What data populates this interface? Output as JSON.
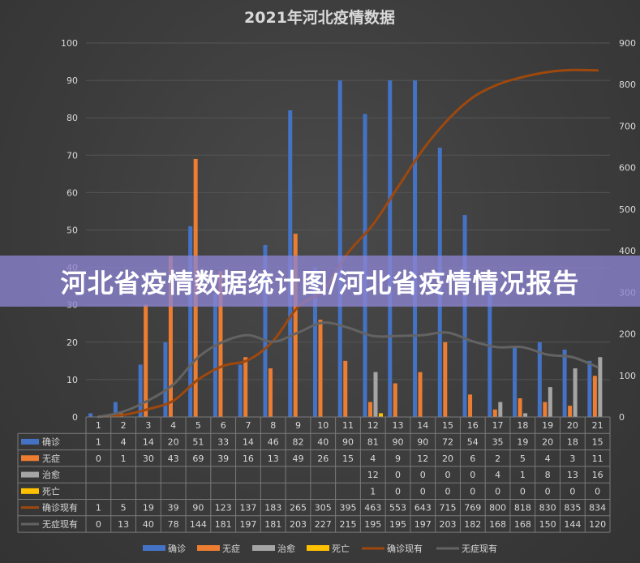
{
  "chart_data": {
    "type": "bar",
    "title": "2021年河北疫情数据",
    "categories": [
      "1",
      "2",
      "3",
      "4",
      "5",
      "6",
      "7",
      "8",
      "9",
      "10",
      "11",
      "12",
      "13",
      "14",
      "15",
      "16",
      "17",
      "18",
      "19",
      "20",
      "21"
    ],
    "y_left": {
      "min": 0,
      "max": 100,
      "ticks": [
        0,
        10,
        20,
        30,
        40,
        50,
        60,
        70,
        80,
        90,
        100
      ]
    },
    "y_right": {
      "min": 0,
      "max": 900,
      "ticks": [
        0,
        100,
        200,
        300,
        400,
        500,
        600,
        700,
        800,
        900
      ]
    },
    "grid": true,
    "legend_position": "bottom",
    "series": [
      {
        "name": "确诊",
        "type": "bar",
        "axis": "left",
        "color": "#4472c4",
        "values": [
          1,
          4,
          14,
          20,
          51,
          33,
          14,
          46,
          82,
          40,
          90,
          81,
          90,
          90,
          72,
          54,
          35,
          19,
          20,
          18,
          15
        ]
      },
      {
        "name": "无症",
        "type": "bar",
        "axis": "left",
        "color": "#ed7d31",
        "values": [
          0,
          1,
          30,
          43,
          69,
          39,
          16,
          13,
          49,
          26,
          15,
          4,
          9,
          12,
          20,
          6,
          2,
          5,
          4,
          3,
          11
        ]
      },
      {
        "name": "治愈",
        "type": "bar",
        "axis": "left",
        "color": "#a5a5a5",
        "values": [
          null,
          null,
          null,
          null,
          null,
          null,
          null,
          null,
          null,
          null,
          null,
          12,
          0,
          0,
          0,
          0,
          4,
          1,
          8,
          13,
          16
        ]
      },
      {
        "name": "死亡",
        "type": "bar",
        "axis": "left",
        "color": "#ffc000",
        "values": [
          null,
          null,
          null,
          null,
          null,
          null,
          null,
          null,
          null,
          null,
          null,
          1,
          0,
          0,
          0,
          0,
          0,
          0,
          0,
          0,
          0
        ]
      },
      {
        "name": "确诊现有",
        "type": "line",
        "axis": "right",
        "color": "#9e480e",
        "values": [
          1,
          5,
          19,
          39,
          90,
          123,
          137,
          183,
          265,
          305,
          395,
          463,
          553,
          643,
          715,
          769,
          800,
          818,
          830,
          835,
          834
        ]
      },
      {
        "name": "无症现有",
        "type": "line",
        "axis": "right",
        "color": "#636363",
        "values": [
          0,
          13,
          40,
          78,
          144,
          181,
          197,
          181,
          203,
          227,
          215,
          195,
          195,
          197,
          203,
          182,
          168,
          168,
          150,
          144,
          120
        ]
      }
    ]
  },
  "banner": {
    "text": "河北省疫情数据统计图/河北省疫情情况报告"
  },
  "colors": {
    "text": "#d9d9d9",
    "grid": "#555555",
    "table_border": "#7a7a7a"
  }
}
